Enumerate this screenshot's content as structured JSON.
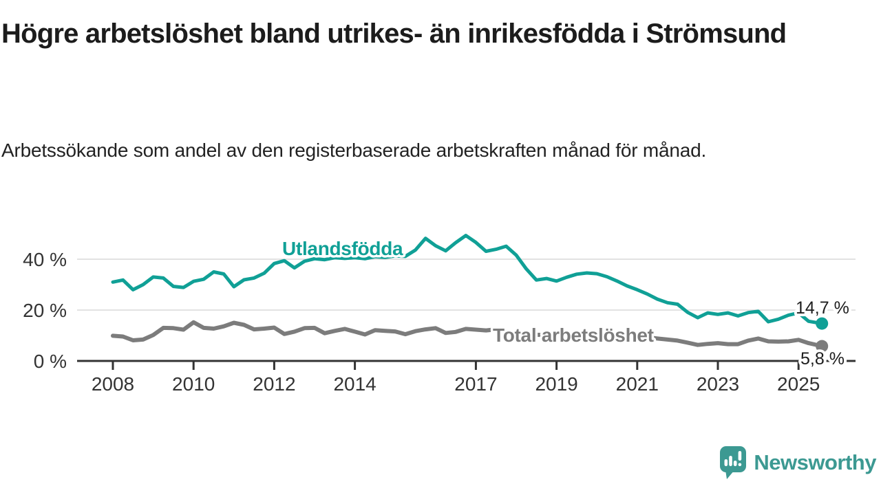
{
  "title": "Högre arbetslöshet bland utrikes- än inrikesfödda i Strömsund",
  "subtitle": "Arbetssökande som andel av den registerbaserade arbetskraften månad för månad.",
  "colors": {
    "foreign_born_line": "#10a096",
    "total_line": "#7c7c7c",
    "axis": "#333333",
    "grid": "#d8d8d8",
    "annotation_text": "#1d1d1d",
    "logo": "#3c9992",
    "background": "#ffffff"
  },
  "chart_data": {
    "type": "line",
    "title": "Högre arbetslöshet bland utrikes- än inrikesfödda i Strömsund",
    "subtitle": "Arbetssökande som andel av den registerbaserade arbetskraften månad för månad.",
    "x_unit": "decimal_year",
    "xlim": [
      2007.1,
      2026.4
    ],
    "ylim": [
      0,
      52
    ],
    "grid": "horizontal",
    "legend_position": "inline-labels",
    "yticks": [
      {
        "value": 0,
        "label": "0 %"
      },
      {
        "value": 20,
        "label": "20 %"
      },
      {
        "value": 40,
        "label": "40 %"
      }
    ],
    "xticks": [
      2008,
      2010,
      2012,
      2014,
      2017,
      2019,
      2021,
      2023,
      2025
    ],
    "x": [
      2008,
      2008.25,
      2008.5,
      2008.75,
      2009,
      2009.25,
      2009.5,
      2009.75,
      2010,
      2010.25,
      2010.5,
      2010.75,
      2011,
      2011.25,
      2011.5,
      2011.75,
      2012,
      2012.25,
      2012.5,
      2012.75,
      2013,
      2013.25,
      2013.5,
      2013.75,
      2014,
      2014.25,
      2014.5,
      2014.75,
      2015,
      2015.25,
      2015.5,
      2015.75,
      2016,
      2016.25,
      2016.5,
      2016.75,
      2017,
      2017.25,
      2017.5,
      2017.75,
      2018,
      2018.25,
      2018.5,
      2018.75,
      2019,
      2019.25,
      2019.5,
      2019.75,
      2020,
      2020.25,
      2020.5,
      2020.75,
      2021,
      2021.25,
      2021.5,
      2021.75,
      2022,
      2022.25,
      2022.5,
      2022.75,
      2023,
      2023.25,
      2023.5,
      2023.75,
      2024,
      2024.25,
      2024.5,
      2024.75,
      2025,
      2025.25,
      2025.58
    ],
    "series": [
      {
        "name": "Utlandsfödda",
        "color": "#10a096",
        "end_label": "14,7 %",
        "end_value": 14.7,
        "values": [
          31.0,
          31.8,
          28.0,
          30.0,
          33.0,
          32.6,
          29.3,
          28.9,
          31.3,
          32.1,
          35.0,
          34.2,
          29.2,
          31.9,
          32.6,
          34.5,
          38.3,
          39.4,
          36.6,
          39.2,
          40.2,
          39.8,
          40.6,
          40.3,
          40.6,
          40.2,
          41.0,
          40.7,
          41.3,
          41.1,
          43.6,
          48.2,
          45.3,
          43.3,
          46.5,
          49.3,
          46.6,
          43.1,
          43.9,
          45.1,
          41.6,
          36.2,
          31.8,
          32.4,
          31.4,
          32.9,
          34.1,
          34.6,
          34.3,
          33.1,
          31.4,
          29.5,
          28.0,
          26.3,
          24.3,
          22.9,
          22.3,
          19.1,
          17.0,
          18.9,
          18.3,
          18.9,
          17.7,
          19.0,
          19.5,
          15.4,
          16.4,
          18.0,
          18.9,
          15.6,
          14.7
        ]
      },
      {
        "name": "Total arbetslöshet",
        "color": "#7c7c7c",
        "end_label": "5,8 %",
        "end_value": 5.8,
        "values": [
          9.9,
          9.6,
          8.1,
          8.4,
          10.2,
          13.0,
          12.9,
          12.3,
          15.2,
          13.0,
          12.7,
          13.6,
          15.0,
          14.2,
          12.4,
          12.7,
          13.1,
          10.6,
          11.5,
          12.9,
          13.0,
          10.9,
          11.8,
          12.6,
          11.5,
          10.4,
          12.1,
          11.8,
          11.6,
          10.5,
          11.7,
          12.4,
          12.9,
          11.0,
          11.4,
          12.6,
          12.3,
          12.0,
          12.4,
          11.6,
          11.0,
          10.6,
          10.3,
          10.1,
          10.0,
          9.9,
          9.8,
          10.0,
          10.4,
          11.0,
          10.9,
          10.4,
          9.9,
          9.3,
          8.8,
          8.4,
          8.0,
          7.2,
          6.3,
          6.7,
          7.0,
          6.6,
          6.6,
          8.0,
          8.8,
          7.7,
          7.6,
          7.7,
          8.3,
          7.0,
          5.8
        ]
      }
    ]
  },
  "logo": {
    "text": "Newsworthy"
  }
}
